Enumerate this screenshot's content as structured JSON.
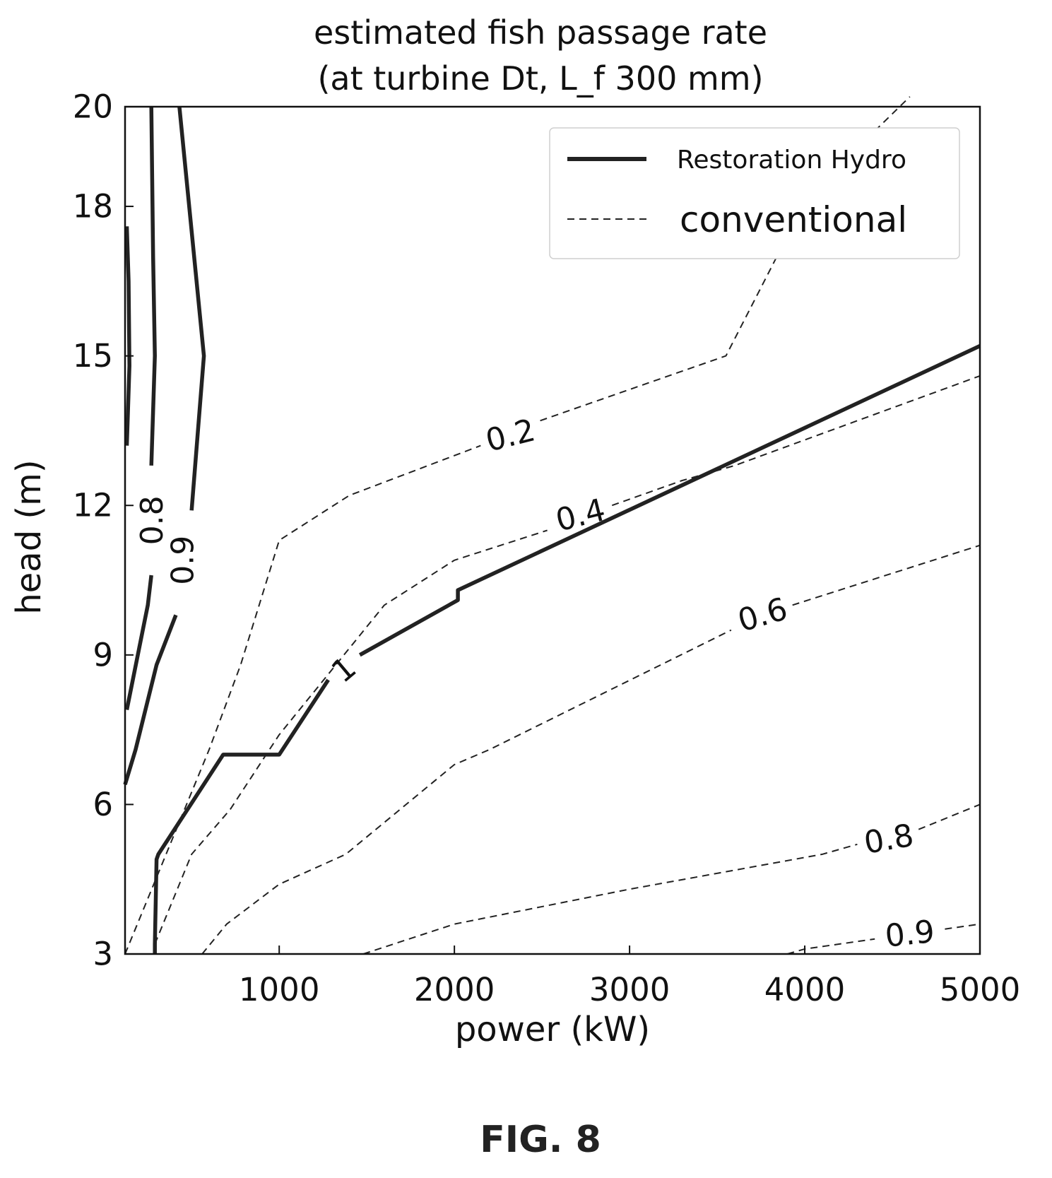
{
  "chart_data": {
    "type": "line",
    "title_line1": "estimated fish passage rate",
    "title_line2": "(at turbine Dt, L_f  300 mm)",
    "xlabel": "power (kW)",
    "ylabel": "head (m)",
    "xlim": [
      120,
      5000
    ],
    "ylim": [
      3,
      20
    ],
    "xticks": [
      1000,
      2000,
      3000,
      4000,
      5000
    ],
    "yticks": [
      3,
      6,
      9,
      12,
      15,
      18,
      20
    ],
    "grid": false,
    "legend": {
      "placement": "top-right",
      "entries": [
        {
          "label": "Restoration Hydro",
          "style": "solid"
        },
        {
          "label": "conventional",
          "style": "dashed"
        }
      ]
    },
    "series": [
      {
        "name": "Restoration Hydro",
        "style": "solid",
        "level": "1",
        "segments": [
          [
            [
              290,
              3
            ],
            [
              290,
              3.2
            ],
            [
              300,
              4.9
            ],
            [
              310,
              5
            ],
            [
              680,
              7
            ],
            [
              1000,
              7
            ],
            [
              1280,
              8.5
            ]
          ],
          [
            [
              1460,
              9.0
            ],
            [
              2020,
              10.1
            ],
            [
              2020,
              10.3
            ],
            [
              5000,
              15.2
            ]
          ]
        ]
      },
      {
        "name": "Restoration Hydro",
        "style": "solid",
        "level": "0.8",
        "segments": [
          [
            [
              130,
              13.2
            ],
            [
              145,
              14.8
            ],
            [
              140,
              16.5
            ],
            [
              130,
              17.6
            ]
          ],
          [
            [
              130,
              7.9
            ],
            [
              250,
              10
            ],
            [
              270,
              10.6
            ]
          ],
          [
            [
              270,
              12.8
            ],
            [
              290,
              15
            ],
            [
              280,
              17
            ],
            [
              270,
              20
            ]
          ]
        ]
      },
      {
        "name": "Restoration Hydro",
        "style": "solid",
        "level": "0.9",
        "segments": [
          [
            [
              120,
              6.4
            ],
            [
              180,
              7.1
            ],
            [
              300,
              8.8
            ],
            [
              410,
              9.8
            ]
          ],
          [
            [
              500,
              11.9
            ],
            [
              570,
              15
            ],
            [
              430,
              20
            ]
          ]
        ]
      },
      {
        "name": "conventional",
        "style": "dashed",
        "level": "0.2",
        "segments": [
          [
            [
              120,
              3
            ],
            [
              600,
              7.1
            ],
            [
              780,
              8.8
            ],
            [
              1000,
              11.3
            ],
            [
              1400,
              12.2
            ],
            [
              2000,
              13.0
            ],
            [
              2150,
              13.2
            ]
          ],
          [
            [
              2490,
              13.7
            ],
            [
              3550,
              15.0
            ],
            [
              3900,
              17.4
            ],
            [
              4250,
              19.0
            ],
            [
              4600,
              20.2
            ]
          ]
        ]
      },
      {
        "name": "conventional",
        "style": "dashed",
        "level": "0.4",
        "segments": [
          [
            [
              290,
              3.2
            ],
            [
              500,
              5
            ],
            [
              720,
              5.9
            ],
            [
              1000,
              7.4
            ],
            [
              1600,
              10.0
            ],
            [
              2000,
              10.9
            ],
            [
              2530,
              11.5
            ]
          ],
          [
            [
              2900,
              12.0
            ],
            [
              3300,
              12.5
            ],
            [
              3600,
              12.8
            ],
            [
              5000,
              14.6
            ]
          ]
        ]
      },
      {
        "name": "conventional",
        "style": "dashed",
        "level": "0.6",
        "segments": [
          [
            [
              560,
              3
            ],
            [
              700,
              3.6
            ],
            [
              1000,
              4.4
            ],
            [
              1380,
              5.0
            ],
            [
              2000,
              6.8
            ],
            [
              2200,
              7.1
            ],
            [
              3580,
              9.5
            ]
          ],
          [
            [
              3930,
              10.0
            ],
            [
              5000,
              11.2
            ]
          ]
        ]
      },
      {
        "name": "conventional",
        "style": "dashed",
        "level": "0.8",
        "segments": [
          [
            [
              1480,
              3
            ],
            [
              2000,
              3.6
            ],
            [
              3000,
              4.3
            ],
            [
              4100,
              5.0
            ],
            [
              4300,
              5.2
            ]
          ],
          [
            [
              4650,
              5.5
            ],
            [
              5000,
              6.0
            ]
          ]
        ]
      },
      {
        "name": "conventional",
        "style": "dashed",
        "level": "0.9",
        "segments": [
          [
            [
              3900,
              3
            ],
            [
              4000,
              3.1
            ],
            [
              4400,
              3.3
            ]
          ],
          [
            [
              4800,
              3.5
            ],
            [
              5000,
              3.6
            ]
          ]
        ]
      }
    ],
    "contour_labels": [
      {
        "text": "0.2",
        "x": 2320,
        "y": 13.4,
        "angle": -14,
        "color": "dashed"
      },
      {
        "text": "0.4",
        "x": 2720,
        "y": 11.8,
        "angle": -14,
        "color": "dashed"
      },
      {
        "text": "0.6",
        "x": 3760,
        "y": 9.8,
        "angle": -16,
        "color": "dashed"
      },
      {
        "text": "0.8",
        "x": 4480,
        "y": 5.3,
        "angle": -10,
        "color": "dashed"
      },
      {
        "text": "0.9",
        "x": 4600,
        "y": 3.4,
        "angle": -6,
        "color": "dashed"
      },
      {
        "text": "1",
        "x": 1370,
        "y": 8.7,
        "angle": -40,
        "color": "solid"
      },
      {
        "text": "0.8",
        "x": 275,
        "y": 11.7,
        "angle": -90,
        "color": "solid"
      },
      {
        "text": "0.9",
        "x": 450,
        "y": 10.9,
        "angle": -90,
        "color": "solid"
      }
    ]
  },
  "figure_label": "FIG. 8"
}
